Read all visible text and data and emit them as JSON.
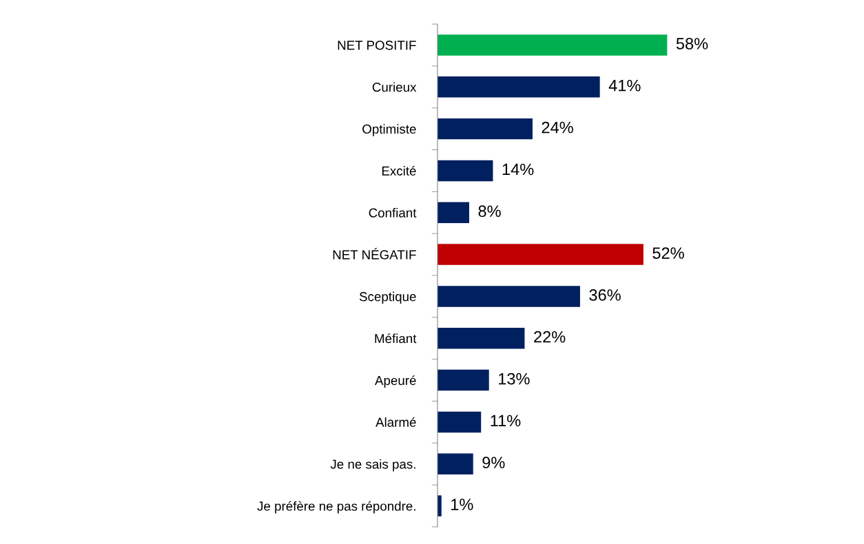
{
  "chart_data": {
    "type": "bar",
    "orientation": "horizontal",
    "categories": [
      "NET POSITIF",
      "Curieux",
      "Optimiste",
      "Excité",
      "Confiant",
      "NET NÉGATIF",
      "Sceptique",
      "Méfiant",
      "Apeuré",
      "Alarmé",
      "Je ne sais pas.",
      "Je préfère ne pas répondre."
    ],
    "values": [
      58,
      41,
      24,
      14,
      8,
      52,
      36,
      22,
      13,
      11,
      9,
      1
    ],
    "colors": [
      "#00b050",
      "#002060",
      "#002060",
      "#002060",
      "#002060",
      "#c00000",
      "#002060",
      "#002060",
      "#002060",
      "#002060",
      "#002060",
      "#002060"
    ],
    "value_labels": [
      "58%",
      "41%",
      "24%",
      "14%",
      "8%",
      "52%",
      "36%",
      "22%",
      "13%",
      "11%",
      "9%",
      "1%"
    ],
    "grid": false,
    "legend": false,
    "tick_labels": "y"
  }
}
